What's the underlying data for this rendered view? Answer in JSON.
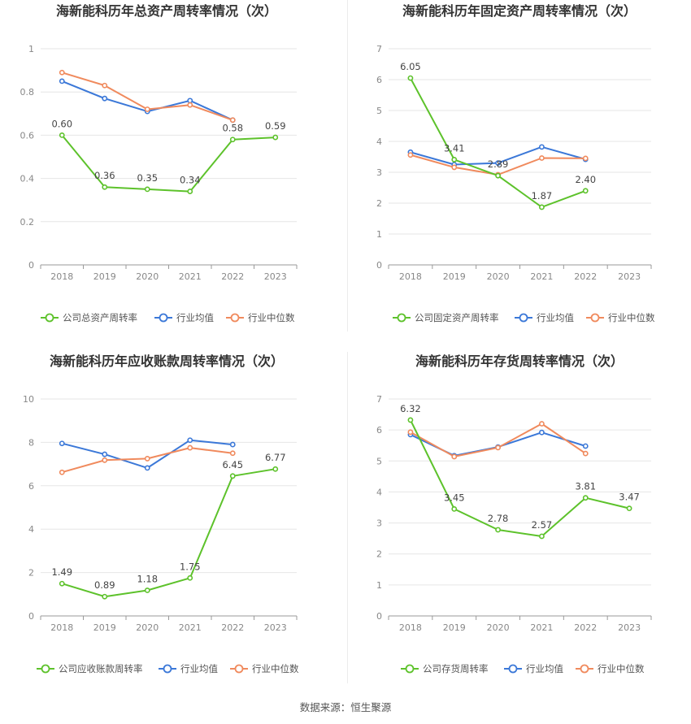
{
  "chart_data": [
    {
      "type": "line",
      "title": "海新能科历年总资产周转率情况（次）",
      "categories": [
        "2018",
        "2019",
        "2020",
        "2021",
        "2022",
        "2023"
      ],
      "yticks": [
        "0",
        "0.2",
        "0.4",
        "0.6",
        "0.8",
        "1"
      ],
      "ylim": [
        0,
        1
      ],
      "grid": true,
      "legend_position": "bottom",
      "series": [
        {
          "name": "公司总资产周转率",
          "color": "#5dc22b",
          "values": [
            0.6,
            0.36,
            0.35,
            0.34,
            0.58,
            0.59
          ],
          "labels": [
            "0.60",
            "0.36",
            "0.35",
            "0.34",
            "0.58",
            "0.59"
          ]
        },
        {
          "name": "行业均值",
          "color": "#3b78d8",
          "values": [
            0.85,
            0.77,
            0.71,
            0.76,
            0.67,
            null
          ]
        },
        {
          "name": "行业中位数",
          "color": "#f08a5d",
          "values": [
            0.89,
            0.83,
            0.72,
            0.74,
            0.67,
            null
          ]
        }
      ]
    },
    {
      "type": "line",
      "title": "海新能科历年固定资产周转率情况（次）",
      "categories": [
        "2018",
        "2019",
        "2020",
        "2021",
        "2022",
        "2023"
      ],
      "yticks": [
        "0",
        "1",
        "2",
        "3",
        "4",
        "5",
        "6",
        "7"
      ],
      "ylim": [
        0,
        7
      ],
      "grid": true,
      "legend_position": "bottom",
      "series": [
        {
          "name": "公司固定资产周转率",
          "color": "#5dc22b",
          "values": [
            6.05,
            3.41,
            2.89,
            1.87,
            2.4,
            null
          ],
          "labels": [
            "6.05",
            "3.41",
            "2.89",
            "1.87",
            "2.40",
            ""
          ]
        },
        {
          "name": "行业均值",
          "color": "#3b78d8",
          "values": [
            3.65,
            3.25,
            3.3,
            3.82,
            3.42,
            null
          ]
        },
        {
          "name": "行业中位数",
          "color": "#f08a5d",
          "values": [
            3.56,
            3.16,
            2.92,
            3.46,
            3.45,
            null
          ]
        }
      ]
    },
    {
      "type": "line",
      "title": "海新能科历年应收账款周转率情况（次）",
      "categories": [
        "2018",
        "2019",
        "2020",
        "2021",
        "2022",
        "2023"
      ],
      "yticks": [
        "0",
        "2",
        "4",
        "6",
        "8",
        "10"
      ],
      "ylim": [
        0,
        10
      ],
      "grid": true,
      "legend_position": "bottom",
      "series": [
        {
          "name": "公司应收账款周转率",
          "color": "#5dc22b",
          "values": [
            1.49,
            0.89,
            1.18,
            1.75,
            6.45,
            6.77
          ],
          "labels": [
            "1.49",
            "0.89",
            "1.18",
            "1.75",
            "6.45",
            "6.77"
          ]
        },
        {
          "name": "行业均值",
          "color": "#3b78d8",
          "values": [
            7.95,
            7.45,
            6.82,
            8.1,
            7.9,
            null
          ]
        },
        {
          "name": "行业中位数",
          "color": "#f08a5d",
          "values": [
            6.62,
            7.18,
            7.25,
            7.75,
            7.5,
            null
          ]
        }
      ]
    },
    {
      "type": "line",
      "title": "海新能科历年存货周转率情况（次）",
      "categories": [
        "2018",
        "2019",
        "2020",
        "2021",
        "2022",
        "2023"
      ],
      "yticks": [
        "0",
        "1",
        "2",
        "3",
        "4",
        "5",
        "6",
        "7"
      ],
      "ylim": [
        0,
        7
      ],
      "grid": true,
      "legend_position": "bottom",
      "series": [
        {
          "name": "公司存货周转率",
          "color": "#5dc22b",
          "values": [
            6.32,
            3.45,
            2.78,
            2.57,
            3.81,
            3.47
          ],
          "labels": [
            "6.32",
            "3.45",
            "2.78",
            "2.57",
            "3.81",
            "3.47"
          ]
        },
        {
          "name": "行业均值",
          "color": "#3b78d8",
          "values": [
            5.85,
            5.17,
            5.45,
            5.92,
            5.48,
            null
          ]
        },
        {
          "name": "行业中位数",
          "color": "#f08a5d",
          "values": [
            5.93,
            5.14,
            5.43,
            6.2,
            5.24,
            null
          ]
        }
      ]
    }
  ],
  "footer": {
    "source": "数据来源：恒生聚源"
  }
}
